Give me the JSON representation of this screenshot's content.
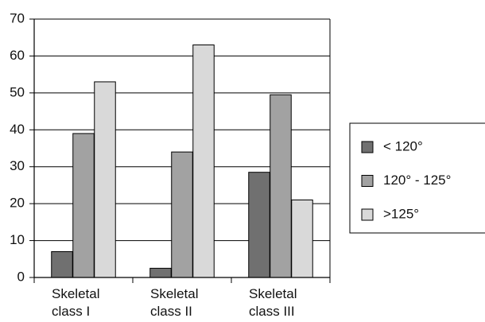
{
  "chart_data": {
    "type": "bar",
    "categories": [
      "Skeletal class I",
      "Skeletal class II",
      "Skeletal class III"
    ],
    "series": [
      {
        "name": "< 120°",
        "color": "#707070",
        "values": [
          7,
          2.5,
          28.5
        ]
      },
      {
        "name": "120° - 125°",
        "color": "#a2a2a2",
        "values": [
          39,
          34,
          49.5
        ]
      },
      {
        "name": ">125°",
        "color": "#d9d9d9",
        "values": [
          53,
          63,
          21
        ]
      }
    ],
    "ylim": [
      0,
      70
    ],
    "yticks": [
      0,
      10,
      20,
      30,
      40,
      50,
      60,
      70
    ],
    "grid": true,
    "legend": "right"
  }
}
